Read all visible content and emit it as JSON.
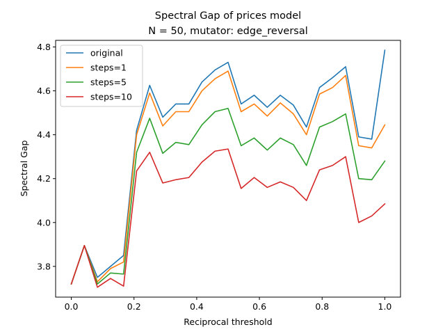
{
  "chart_data": {
    "type": "line",
    "title": "Spectral Gap of prices model",
    "subtitle": "N = 50, mutator: edge_reversal",
    "xlabel": "Reciprocal threshold",
    "ylabel": "Spectral Gap",
    "xlim": [
      -0.05,
      1.05
    ],
    "ylim": [
      3.66,
      4.83
    ],
    "xticks": [
      0.0,
      0.2,
      0.4,
      0.6,
      0.8,
      1.0
    ],
    "xtick_labels": [
      "0.0",
      "0.2",
      "0.4",
      "0.6",
      "0.8",
      "1.0"
    ],
    "yticks": [
      3.8,
      4.0,
      4.2,
      4.4,
      4.6,
      4.8
    ],
    "ytick_labels": [
      "3.8",
      "4.0",
      "4.2",
      "4.4",
      "4.6",
      "4.8"
    ],
    "grid": false,
    "legend_position": "top-left",
    "x": [
      0.0,
      0.0417,
      0.0833,
      0.125,
      0.1667,
      0.2083,
      0.25,
      0.2917,
      0.3333,
      0.375,
      0.4167,
      0.4583,
      0.5,
      0.5417,
      0.5833,
      0.625,
      0.6667,
      0.7083,
      0.75,
      0.7917,
      0.8333,
      0.875,
      0.9167,
      0.9583,
      1.0
    ],
    "series": [
      {
        "name": "original",
        "color": "#1f77b4",
        "values": [
          3.72,
          3.895,
          3.75,
          3.8,
          3.85,
          4.42,
          4.625,
          4.48,
          4.54,
          4.54,
          4.64,
          4.695,
          4.73,
          4.54,
          4.58,
          4.525,
          4.58,
          4.535,
          4.435,
          4.615,
          4.66,
          4.71,
          4.39,
          4.38,
          4.785
        ]
      },
      {
        "name": "steps=1",
        "color": "#ff7f0e",
        "values": [
          3.72,
          3.895,
          3.73,
          3.79,
          3.82,
          4.4,
          4.59,
          4.44,
          4.505,
          4.505,
          4.6,
          4.655,
          4.69,
          4.505,
          4.54,
          4.485,
          4.545,
          4.495,
          4.4,
          4.585,
          4.615,
          4.67,
          4.35,
          4.34,
          4.445
        ]
      },
      {
        "name": "steps=5",
        "color": "#2ca02c",
        "values": [
          3.72,
          3.895,
          3.72,
          3.77,
          3.765,
          4.32,
          4.475,
          4.315,
          4.365,
          4.355,
          4.445,
          4.505,
          4.52,
          4.35,
          4.385,
          4.33,
          4.385,
          4.355,
          4.26,
          4.435,
          4.46,
          4.495,
          4.2,
          4.195,
          4.28
        ]
      },
      {
        "name": "steps=10",
        "color": "#d62728",
        "values": [
          3.72,
          3.895,
          3.705,
          3.745,
          3.71,
          4.235,
          4.32,
          4.18,
          4.195,
          4.205,
          4.275,
          4.325,
          4.335,
          4.155,
          4.205,
          4.16,
          4.185,
          4.16,
          4.1,
          4.24,
          4.26,
          4.3,
          4.0,
          4.03,
          4.085
        ]
      }
    ]
  }
}
